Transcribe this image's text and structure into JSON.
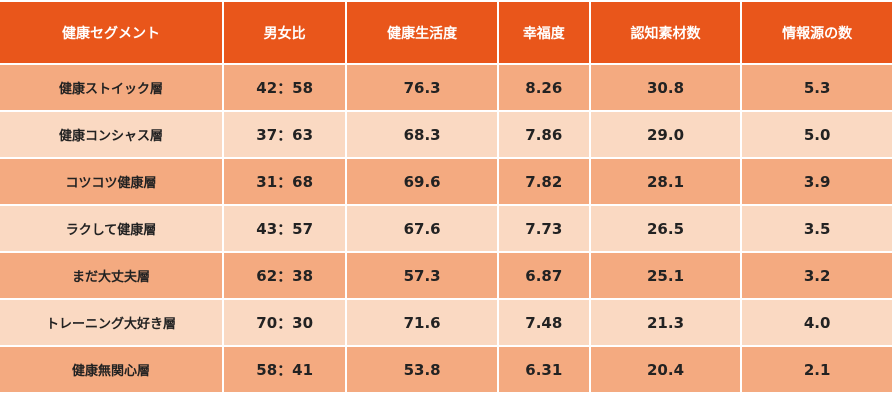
{
  "table": {
    "headers": [
      "健康セグメント",
      "男女比",
      "健康生活度",
      "幸福度",
      "認知素材数",
      "情報源の数"
    ],
    "rows": [
      [
        "健康ストイック層",
        "42：58",
        "76.3",
        "8.26",
        "30.8",
        "5.3"
      ],
      [
        "健康コンシャス層",
        "37：63",
        "68.3",
        "7.86",
        "29.0",
        "5.0"
      ],
      [
        "コツコツ健康層",
        "31：68",
        "69.6",
        "7.82",
        "28.1",
        "3.9"
      ],
      [
        "ラクして健康層",
        "43：57",
        "67.6",
        "7.73",
        "26.5",
        "3.5"
      ],
      [
        "まだ大丈夫層",
        "62：38",
        "57.3",
        "6.87",
        "25.1",
        "3.2"
      ],
      [
        "トレーニング大好き層",
        "70：30",
        "71.6",
        "7.48",
        "21.3",
        "4.0"
      ],
      [
        "健康無関心層",
        "58：41",
        "53.8",
        "6.31",
        "20.4",
        "2.1"
      ]
    ]
  }
}
